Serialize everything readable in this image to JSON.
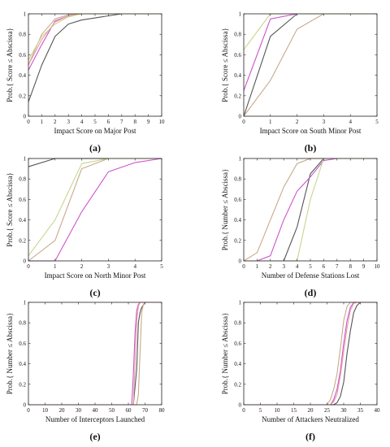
{
  "chart_data": [
    {
      "panel": "(a)",
      "type": "line",
      "xlabel": "Impact Score on Major Post",
      "ylabel": "Prob.{ Score ≤ Abscissa}",
      "xlim": [
        0,
        10
      ],
      "ylim": [
        0,
        1
      ],
      "xticks": [
        "0",
        "1",
        "2",
        "3",
        "4",
        "5",
        "6",
        "7",
        "8",
        "9",
        "10"
      ],
      "yticks": [
        "0",
        "0.2",
        "0.4",
        "0.6",
        "0.8",
        "1"
      ],
      "series": [
        {
          "color": "#555555",
          "x": [
            0,
            1,
            2,
            3,
            4,
            5,
            7,
            10
          ],
          "y": [
            0.14,
            0.5,
            0.78,
            0.9,
            0.94,
            0.96,
            1,
            1
          ]
        },
        {
          "color": "#c9a98b",
          "x": [
            0,
            1,
            2,
            3,
            4,
            5,
            10
          ],
          "y": [
            0.5,
            0.8,
            0.95,
            0.99,
            1,
            1,
            1
          ]
        },
        {
          "color": "#cc55cc",
          "x": [
            0,
            1,
            2,
            3,
            4,
            10
          ],
          "y": [
            0.45,
            0.7,
            0.93,
            0.98,
            1,
            1
          ]
        },
        {
          "color": "#e6a0a0",
          "x": [
            0,
            1,
            2,
            3,
            4,
            10
          ],
          "y": [
            0.5,
            0.75,
            0.92,
            0.98,
            1,
            1
          ]
        },
        {
          "color": "#c9d58f",
          "x": [
            0,
            1,
            2,
            3,
            4,
            10
          ],
          "y": [
            0.55,
            0.78,
            0.9,
            0.97,
            1,
            1
          ]
        }
      ]
    },
    {
      "panel": "(b)",
      "type": "line",
      "xlabel": "Impact Score on South Minor Post",
      "ylabel": "Prob.{ Score ≤ Abscissa}",
      "xlim": [
        0,
        5
      ],
      "ylim": [
        0,
        1
      ],
      "xticks": [
        "0",
        "1",
        "2",
        "3",
        "4",
        "5"
      ],
      "yticks": [
        "0",
        "0.2",
        "0.4",
        "0.6",
        "0.8",
        "1"
      ],
      "series": [
        {
          "color": "#555555",
          "x": [
            0,
            1,
            2,
            3,
            4,
            5
          ],
          "y": [
            0,
            0.78,
            1,
            1,
            1,
            1
          ]
        },
        {
          "color": "#c9a98b",
          "x": [
            0,
            1,
            2,
            3,
            4,
            5
          ],
          "y": [
            0,
            0.35,
            0.85,
            1,
            1,
            1
          ]
        },
        {
          "color": "#cc55cc",
          "x": [
            0,
            1,
            2,
            3,
            4,
            5
          ],
          "y": [
            0.25,
            0.95,
            1,
            1,
            1,
            1
          ]
        },
        {
          "color": "#c9d58f",
          "x": [
            0,
            1,
            2,
            3,
            4,
            5
          ],
          "y": [
            0.65,
            1,
            1,
            1,
            1,
            1
          ]
        }
      ]
    },
    {
      "panel": "(c)",
      "type": "line",
      "xlabel": "Impact Score on North Minor Post",
      "ylabel": "Prob.{ Score ≤ Abscissa}",
      "xlim": [
        0,
        5
      ],
      "ylim": [
        0,
        1
      ],
      "xticks": [
        "0",
        "1",
        "2",
        "3",
        "4",
        "5"
      ],
      "yticks": [
        "0",
        "0.2",
        "0.4",
        "0.6",
        "0.8",
        "1"
      ],
      "series": [
        {
          "color": "#555555",
          "x": [
            0,
            1,
            2,
            3,
            4,
            5
          ],
          "y": [
            0.92,
            1,
            1,
            1,
            1,
            1
          ]
        },
        {
          "color": "#c9a98b",
          "x": [
            0,
            1,
            2,
            3,
            4,
            5
          ],
          "y": [
            0,
            0.2,
            0.9,
            1,
            1,
            1
          ]
        },
        {
          "color": "#cc55cc",
          "x": [
            0,
            1,
            2,
            3,
            4,
            5
          ],
          "y": [
            0,
            0,
            0.48,
            0.87,
            0.96,
            1
          ]
        },
        {
          "color": "#c9d58f",
          "x": [
            0,
            1,
            2,
            3,
            4,
            5
          ],
          "y": [
            0.05,
            0.4,
            0.95,
            1,
            1,
            1
          ]
        }
      ]
    },
    {
      "panel": "(d)",
      "type": "line",
      "xlabel": "Number of Defense Stations Lost",
      "ylabel": "Prob.{ Number ≤ Abscissa}",
      "xlim": [
        0,
        10
      ],
      "ylim": [
        0,
        1
      ],
      "xticks": [
        "0",
        "1",
        "2",
        "3",
        "4",
        "5",
        "6",
        "7",
        "8",
        "9",
        "10"
      ],
      "yticks": [
        "0",
        "0.2",
        "0.4",
        "0.6",
        "0.8",
        "1"
      ],
      "series": [
        {
          "color": "#555555",
          "x": [
            0,
            3,
            4,
            5,
            6,
            7,
            10
          ],
          "y": [
            0,
            0,
            0.33,
            0.85,
            1,
            1,
            1
          ]
        },
        {
          "color": "#c9a98b",
          "x": [
            0,
            1,
            2,
            3,
            4,
            5,
            6,
            10
          ],
          "y": [
            0,
            0.08,
            0.4,
            0.72,
            0.95,
            1,
            1,
            1
          ]
        },
        {
          "color": "#cc55cc",
          "x": [
            0,
            1,
            2,
            3,
            4,
            5,
            6,
            7,
            10
          ],
          "y": [
            0,
            0,
            0.05,
            0.4,
            0.68,
            0.82,
            0.98,
            1,
            1
          ]
        },
        {
          "color": "#c9d58f",
          "x": [
            0,
            4,
            5,
            6,
            7,
            10
          ],
          "y": [
            0,
            0,
            0.6,
            1,
            1,
            1
          ]
        }
      ]
    },
    {
      "panel": "(e)",
      "type": "line",
      "xlabel": "Number of Interceptors Launched",
      "ylabel": "Prob.{ Number ≤ Abscissa}",
      "xlim": [
        0,
        80
      ],
      "ylim": [
        0,
        1
      ],
      "xticks": [
        "0",
        "10",
        "20",
        "30",
        "40",
        "50",
        "60",
        "70",
        "80"
      ],
      "yticks": [
        "0",
        "0.2",
        "0.4",
        "0.6",
        "0.8",
        "1"
      ],
      "series": [
        {
          "color": "#555555",
          "x": [
            0,
            63,
            65,
            66,
            67,
            68,
            70,
            80
          ],
          "y": [
            0,
            0,
            0.35,
            0.8,
            0.9,
            0.95,
            1,
            1
          ]
        },
        {
          "color": "#c9a98b",
          "x": [
            0,
            65,
            66,
            67,
            68,
            69,
            70,
            80
          ],
          "y": [
            0,
            0,
            0.1,
            0.5,
            0.9,
            0.98,
            1,
            1
          ]
        },
        {
          "color": "#cc55cc",
          "x": [
            0,
            62,
            63,
            64,
            65,
            66,
            67,
            80
          ],
          "y": [
            0,
            0,
            0.3,
            0.7,
            0.92,
            0.98,
            1,
            1
          ]
        },
        {
          "color": "#e6a0a0",
          "x": [
            0,
            63,
            64,
            65,
            66,
            67,
            68,
            80
          ],
          "y": [
            0,
            0,
            0.4,
            0.82,
            0.96,
            1,
            1,
            1
          ]
        }
      ]
    },
    {
      "panel": "(f)",
      "type": "line",
      "xlabel": "Number of Attackers Neutralized",
      "ylabel": "Prob.{ Number ≤ Abscissa}",
      "xlim": [
        0,
        40
      ],
      "ylim": [
        0,
        1
      ],
      "xticks": [
        "0",
        "5",
        "10",
        "15",
        "20",
        "25",
        "30",
        "35",
        "40"
      ],
      "yticks": [
        "0",
        "0.2",
        "0.4",
        "0.6",
        "0.8",
        "1"
      ],
      "series": [
        {
          "color": "#555555",
          "x": [
            0,
            27,
            28,
            29,
            30,
            31,
            32,
            33,
            34,
            35,
            40
          ],
          "y": [
            0,
            0,
            0.02,
            0.08,
            0.22,
            0.5,
            0.72,
            0.9,
            0.97,
            1,
            1
          ]
        },
        {
          "color": "#c9a98b",
          "x": [
            0,
            25,
            26,
            27,
            28,
            29,
            30,
            31,
            32,
            40
          ],
          "y": [
            0,
            0,
            0.05,
            0.15,
            0.3,
            0.55,
            0.82,
            0.96,
            1,
            1
          ]
        },
        {
          "color": "#cc55cc",
          "x": [
            0,
            26,
            27,
            28,
            29,
            30,
            31,
            32,
            33,
            40
          ],
          "y": [
            0,
            0,
            0.05,
            0.15,
            0.33,
            0.6,
            0.82,
            0.95,
            1,
            1
          ]
        },
        {
          "color": "#e6a0a0",
          "x": [
            0,
            26,
            27,
            28,
            29,
            30,
            31,
            32,
            33,
            34,
            40
          ],
          "y": [
            0,
            0,
            0.03,
            0.1,
            0.28,
            0.52,
            0.75,
            0.92,
            0.99,
            1,
            1
          ]
        }
      ]
    }
  ]
}
